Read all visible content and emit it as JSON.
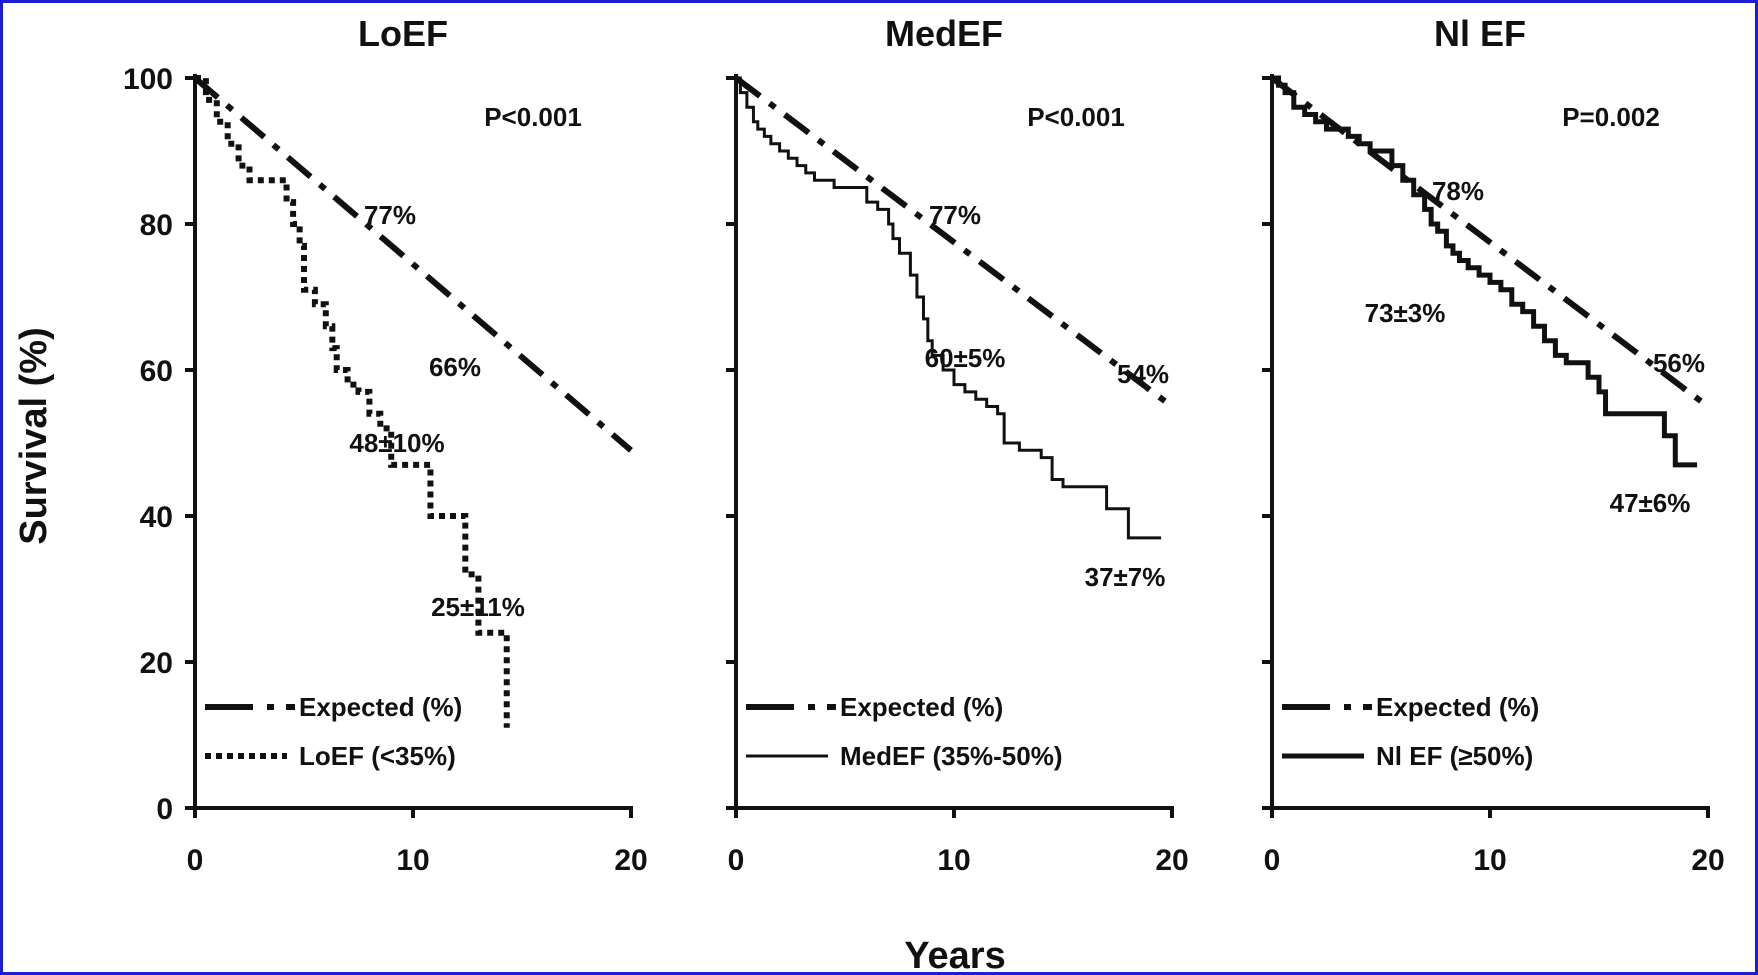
{
  "figure": {
    "ylabel": "Survival (%)",
    "xlabel": "Years",
    "colors": {
      "frame": "#1d1dd6",
      "ink": "#111111"
    }
  },
  "chart_data": [
    {
      "type": "line",
      "title": "LoEF",
      "xlim": [
        0,
        20
      ],
      "ylim": [
        0,
        100
      ],
      "xticks": [
        0,
        10,
        20
      ],
      "yticks": [
        0,
        20,
        40,
        60,
        80,
        100
      ],
      "pvalue": "P<0.001",
      "series": [
        {
          "name": "Expected (%)",
          "style": "dashdot",
          "x": [
            0,
            20
          ],
          "y": [
            100,
            49
          ]
        },
        {
          "name": "LoEF (<35%)",
          "style": "dotted",
          "step": true,
          "x": [
            0,
            0.5,
            1,
            1.5,
            2,
            2.5,
            3.5,
            4.2,
            4.5,
            4.8,
            5,
            5.5,
            6,
            6.3,
            6.5,
            7,
            7.5,
            8,
            8.5,
            9,
            10,
            10.8,
            12,
            12.4,
            13,
            14,
            14.3
          ],
          "y": [
            100,
            97,
            94,
            91,
            88,
            86,
            86,
            83,
            80,
            77,
            71,
            69,
            66,
            63,
            60,
            58,
            57,
            54,
            52,
            47,
            47,
            40,
            40,
            32,
            24,
            24,
            11
          ]
        }
      ],
      "annotations": [
        "77%",
        "66%",
        "48±10%",
        "25±11%"
      ]
    },
    {
      "type": "line",
      "title": "MedEF",
      "xlim": [
        0,
        20
      ],
      "ylim": [
        0,
        100
      ],
      "xticks": [
        0,
        10,
        20
      ],
      "yticks": [
        0,
        20,
        40,
        60,
        80,
        100
      ],
      "pvalue": "P<0.001",
      "series": [
        {
          "name": "Expected (%)",
          "style": "dashdot",
          "x": [
            0,
            20
          ],
          "y": [
            100,
            55
          ]
        },
        {
          "name": "MedEF (35%-50%)",
          "style": "solid-thin",
          "step": true,
          "x": [
            0,
            0.2,
            0.5,
            0.8,
            1,
            1.3,
            1.6,
            2,
            2.4,
            2.8,
            3.2,
            3.6,
            4,
            4.5,
            5,
            5.5,
            6,
            6.5,
            7,
            7.2,
            7.5,
            8,
            8.3,
            8.6,
            8.8,
            9,
            9.5,
            10,
            10.5,
            11,
            11.5,
            12,
            12.3,
            13,
            14,
            14.5,
            15,
            16,
            16.5,
            17,
            17.5,
            18,
            19,
            19.5
          ],
          "y": [
            100,
            98,
            96,
            94,
            93,
            92,
            91,
            90,
            89,
            88,
            87,
            86,
            86,
            85,
            85,
            85,
            83,
            82,
            80,
            78,
            76,
            73,
            70,
            67,
            64,
            62,
            60,
            58,
            57,
            56,
            55,
            54,
            50,
            49,
            48,
            45,
            44,
            44,
            44,
            41,
            41,
            37,
            37,
            37
          ]
        }
      ],
      "annotations": [
        "77%",
        "54%",
        "60±5%",
        "37±7%"
      ]
    },
    {
      "type": "line",
      "title": "Nl EF",
      "xlim": [
        0,
        20
      ],
      "ylim": [
        0,
        100
      ],
      "xticks": [
        0,
        10,
        20
      ],
      "yticks": [
        0,
        20,
        40,
        60,
        80,
        100
      ],
      "pvalue": "P=0.002",
      "series": [
        {
          "name": "Expected (%)",
          "style": "dashdot",
          "x": [
            0,
            20
          ],
          "y": [
            100,
            55
          ]
        },
        {
          "name": "Nl EF (≥50%)",
          "style": "solid-thick",
          "step": true,
          "x": [
            0,
            0.3,
            0.6,
            1,
            1.5,
            2,
            2.5,
            3,
            3.5,
            4,
            4.5,
            5,
            5.5,
            6,
            6.5,
            7,
            7.3,
            7.6,
            8,
            8.3,
            8.6,
            9,
            9.5,
            10,
            10.5,
            11,
            11.5,
            12,
            12.5,
            13,
            13.5,
            14,
            14.5,
            15,
            15.3,
            16,
            17,
            17.5,
            18,
            18.5,
            19,
            19.5
          ],
          "y": [
            100,
            99,
            98,
            96,
            95,
            94,
            93,
            93,
            92,
            91,
            90,
            90,
            88,
            86,
            84,
            82,
            80,
            79,
            77,
            76,
            75,
            74,
            73,
            72,
            71,
            69,
            68,
            66,
            64,
            62,
            61,
            61,
            59,
            57,
            54,
            54,
            54,
            54,
            51,
            47,
            47,
            47
          ]
        }
      ],
      "annotations": [
        "78%",
        "73±3%",
        "56%",
        "47±6%"
      ]
    }
  ]
}
